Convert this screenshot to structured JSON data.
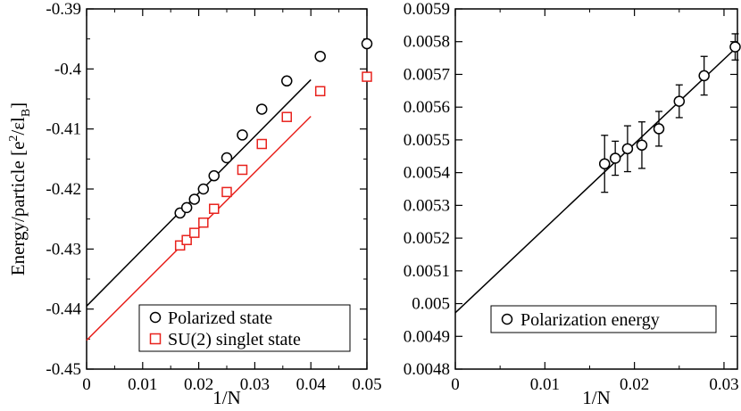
{
  "chart_data": [
    {
      "type": "scatter",
      "title": "",
      "xlabel": "1/N",
      "ylabel_parts": {
        "pre": "Energy/particle [e",
        "sup": "2",
        "mid": "/ε",
        "post": "l",
        "sub": "B",
        "end": "]"
      },
      "xlim": [
        0,
        0.05
      ],
      "ylim": [
        -0.45,
        -0.39
      ],
      "xticks": [
        0,
        0.01,
        0.02,
        0.03,
        0.04,
        0.05
      ],
      "xtick_labels": [
        "0",
        "0.01",
        "0.02",
        "0.03",
        "0.04",
        "0.05"
      ],
      "yticks": [
        -0.45,
        -0.44,
        -0.43,
        -0.42,
        -0.41,
        -0.4,
        -0.39
      ],
      "ytick_labels": [
        "-0.45",
        "-0.44",
        "-0.43",
        "-0.42",
        "-0.41",
        "-0.4",
        "-0.39"
      ],
      "legend_position": "bottom-right",
      "series": [
        {
          "name": "Polarized state",
          "marker": "circle",
          "color": "#000000",
          "x": [
            0.01667,
            0.01786,
            0.01923,
            0.02083,
            0.02273,
            0.025,
            0.02778,
            0.03125,
            0.03571,
            0.04167,
            0.05
          ],
          "y": [
            -0.424,
            -0.4231,
            -0.4217,
            -0.42,
            -0.4178,
            -0.4148,
            -0.411,
            -0.4067,
            -0.402,
            -0.3979,
            -0.3958
          ],
          "fit": {
            "x": [
              0,
              0.04
            ],
            "y": [
              -0.4395,
              -0.4018
            ]
          }
        },
        {
          "name": "SU(2) singlet state",
          "marker": "square",
          "color": "#e8221d",
          "x": [
            0.01667,
            0.01786,
            0.01923,
            0.02083,
            0.02273,
            0.025,
            0.02778,
            0.03125,
            0.03571,
            0.04167,
            0.05
          ],
          "y": [
            -0.4294,
            -0.4285,
            -0.4273,
            -0.4256,
            -0.4233,
            -0.4205,
            -0.4168,
            -0.4125,
            -0.408,
            -0.4037,
            -0.4013
          ],
          "fit": {
            "x": [
              0,
              0.04
            ],
            "y": [
              -0.4452,
              -0.4079
            ]
          }
        }
      ]
    },
    {
      "type": "scatter",
      "title": "",
      "xlabel": "1/N",
      "ylabel": "",
      "xlim": [
        0,
        0.0315
      ],
      "ylim": [
        0.0048,
        0.0059
      ],
      "xticks": [
        0,
        0.01,
        0.02,
        0.03
      ],
      "xtick_labels": [
        "0",
        "0.01",
        "0.02",
        "0.03"
      ],
      "yticks": [
        0.0048,
        0.0049,
        0.005,
        0.0051,
        0.0052,
        0.0053,
        0.0054,
        0.0055,
        0.0056,
        0.0057,
        0.0058,
        0.0059
      ],
      "ytick_labels": [
        "0.0048",
        "0.0049",
        "0.005",
        "0.0051",
        "0.0052",
        "0.0053",
        "0.0054",
        "0.0055",
        "0.0056",
        "0.0057",
        "0.0058",
        "0.0059"
      ],
      "legend_position": "bottom-right",
      "series": [
        {
          "name": "Polarization energy",
          "marker": "circle",
          "color": "#000000",
          "x": [
            0.01667,
            0.01786,
            0.01923,
            0.02083,
            0.02273,
            0.025,
            0.02778,
            0.03125
          ],
          "y": [
            0.005427,
            0.005444,
            0.005473,
            0.005484,
            0.005534,
            0.005618,
            0.005696,
            0.005784
          ],
          "err": [
            8.7e-05,
            5.2e-05,
            7e-05,
            7.1e-05,
            5.3e-05,
            5e-05,
            5.9e-05,
            4e-05
          ],
          "fit": {
            "x": [
              0,
              0.0315
            ],
            "y": [
              0.004972,
              0.005785
            ]
          }
        }
      ]
    }
  ]
}
